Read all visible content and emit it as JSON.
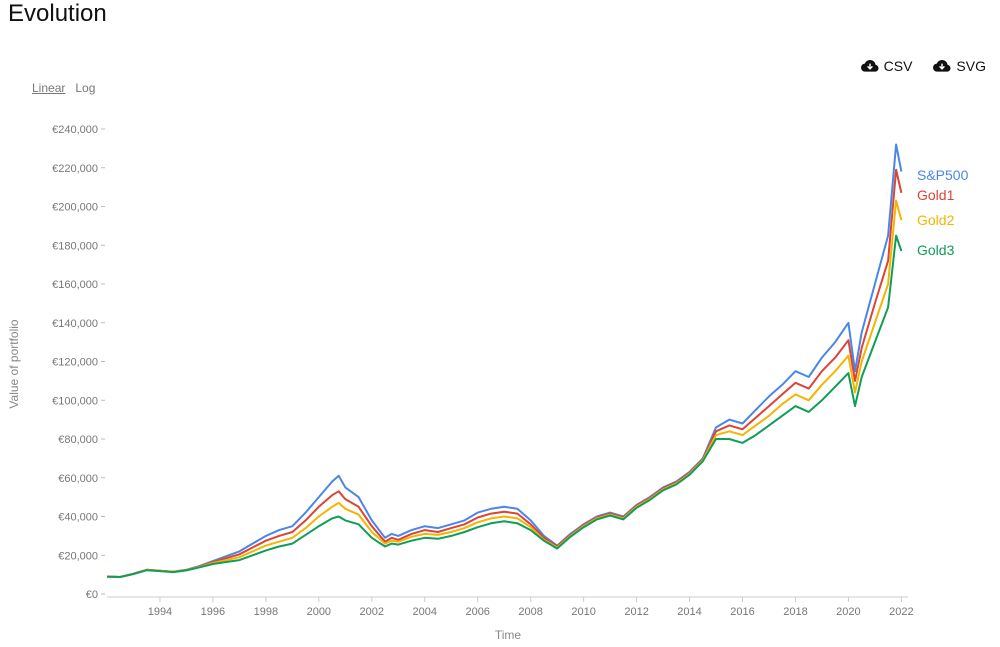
{
  "page": {
    "title": "Evolution",
    "actions": [
      {
        "label": "CSV",
        "icon": "cloud-download-icon"
      },
      {
        "label": "SVG",
        "icon": "cloud-download-icon"
      }
    ],
    "scale_options": {
      "active": "Linear",
      "inactive": "Log"
    }
  },
  "chart_data": {
    "type": "line",
    "title": "",
    "xlabel": "Time",
    "ylabel": "Value of portfolio",
    "xlim": [
      1992.0,
      2022.25
    ],
    "ylim": [
      0,
      240000
    ],
    "x_ticks": [
      "1994",
      "1996",
      "1998",
      "2000",
      "2002",
      "2004",
      "2006",
      "2008",
      "2010",
      "2012",
      "2014",
      "2016",
      "2018",
      "2020",
      "2022"
    ],
    "y_ticks": [
      "€0",
      "€20,000",
      "€40,000",
      "€60,000",
      "€80,000",
      "€100,000",
      "€120,000",
      "€140,000",
      "€160,000",
      "€180,000",
      "€200,000",
      "€220,000",
      "€240,000"
    ],
    "grid": false,
    "legend": "end-of-line labels",
    "x": [
      1992.0,
      1992.5,
      1993.0,
      1993.5,
      1994.0,
      1994.5,
      1995.0,
      1995.5,
      1996.0,
      1996.5,
      1997.0,
      1997.5,
      1998.0,
      1998.5,
      1999.0,
      1999.5,
      2000.0,
      2000.5,
      2000.75,
      2001.0,
      2001.5,
      2002.0,
      2002.5,
      2002.75,
      2003.0,
      2003.5,
      2004.0,
      2004.5,
      2005.0,
      2005.5,
      2006.0,
      2006.5,
      2007.0,
      2007.5,
      2008.0,
      2008.5,
      2009.0,
      2009.5,
      2010.0,
      2010.5,
      2011.0,
      2011.5,
      2012.0,
      2012.5,
      2013.0,
      2013.5,
      2014.0,
      2014.5,
      2015.0,
      2015.5,
      2016.0,
      2016.5,
      2017.0,
      2017.5,
      2018.0,
      2018.5,
      2019.0,
      2019.5,
      2020.0,
      2020.25,
      2020.5,
      2021.0,
      2021.5,
      2021.8,
      2022.0
    ],
    "series": [
      {
        "name": "S&P500",
        "color": "#4a86e8",
        "values": [
          9000,
          8800,
          10500,
          12500,
          12000,
          11500,
          12500,
          14500,
          17000,
          19500,
          22000,
          26000,
          30000,
          33000,
          35000,
          42000,
          50000,
          58000,
          61000,
          55000,
          50000,
          38000,
          29000,
          31000,
          30000,
          33000,
          35000,
          34000,
          36000,
          38000,
          42000,
          44000,
          45000,
          44000,
          38000,
          30000,
          25000,
          31000,
          36000,
          40000,
          42000,
          40000,
          46000,
          50000,
          55000,
          58000,
          63000,
          70000,
          86000,
          90000,
          88000,
          95000,
          102000,
          108000,
          115000,
          112000,
          122000,
          130000,
          140000,
          115000,
          135000,
          160000,
          185000,
          232000,
          218000
        ]
      },
      {
        "name": "Gold1",
        "color": "#db4437",
        "values": [
          9000,
          8800,
          10500,
          12500,
          12000,
          11500,
          12400,
          14200,
          16500,
          18500,
          20500,
          24000,
          27500,
          30000,
          32000,
          38000,
          45000,
          51000,
          53000,
          49000,
          45000,
          35000,
          27000,
          29000,
          28000,
          31000,
          33000,
          32000,
          34000,
          36000,
          39500,
          41500,
          42500,
          41500,
          36000,
          29000,
          24500,
          30500,
          35500,
          39500,
          41500,
          39500,
          45500,
          49500,
          54500,
          57500,
          62500,
          69500,
          84000,
          87000,
          85000,
          91000,
          97000,
          103000,
          109000,
          106000,
          115000,
          122000,
          131000,
          110000,
          127000,
          150000,
          172000,
          219000,
          207000
        ]
      },
      {
        "name": "Gold2",
        "color": "#f4b400",
        "values": [
          9000,
          8800,
          10400,
          12400,
          11900,
          11400,
          12300,
          14000,
          16000,
          17500,
          19000,
          22000,
          25000,
          27000,
          29000,
          34000,
          40000,
          45000,
          47000,
          44000,
          41000,
          32000,
          26000,
          27500,
          27000,
          29500,
          31000,
          30500,
          32000,
          34000,
          37000,
          39000,
          40000,
          39000,
          34500,
          28000,
          24000,
          30000,
          35000,
          39000,
          41000,
          39000,
          45000,
          49000,
          54000,
          57000,
          62000,
          69000,
          82000,
          84000,
          82000,
          87000,
          92000,
          98000,
          103000,
          100000,
          108000,
          115000,
          123000,
          104000,
          120000,
          140000,
          160000,
          203000,
          193000
        ]
      },
      {
        "name": "Gold3",
        "color": "#0f9d58",
        "values": [
          9000,
          8800,
          10300,
          12300,
          11800,
          11300,
          12200,
          13800,
          15500,
          16500,
          17500,
          20000,
          22500,
          24500,
          26000,
          30500,
          35000,
          39000,
          40000,
          38000,
          36000,
          29000,
          24500,
          26000,
          25500,
          27500,
          29000,
          28500,
          30000,
          32000,
          34500,
          36500,
          37500,
          36500,
          33000,
          27500,
          23500,
          29500,
          34500,
          38500,
          40500,
          38500,
          44500,
          48500,
          53500,
          56500,
          61500,
          68500,
          80000,
          80000,
          78000,
          82000,
          87000,
          92000,
          97000,
          94000,
          100000,
          107000,
          114000,
          97000,
          112000,
          130000,
          148000,
          185000,
          177000
        ]
      }
    ]
  }
}
